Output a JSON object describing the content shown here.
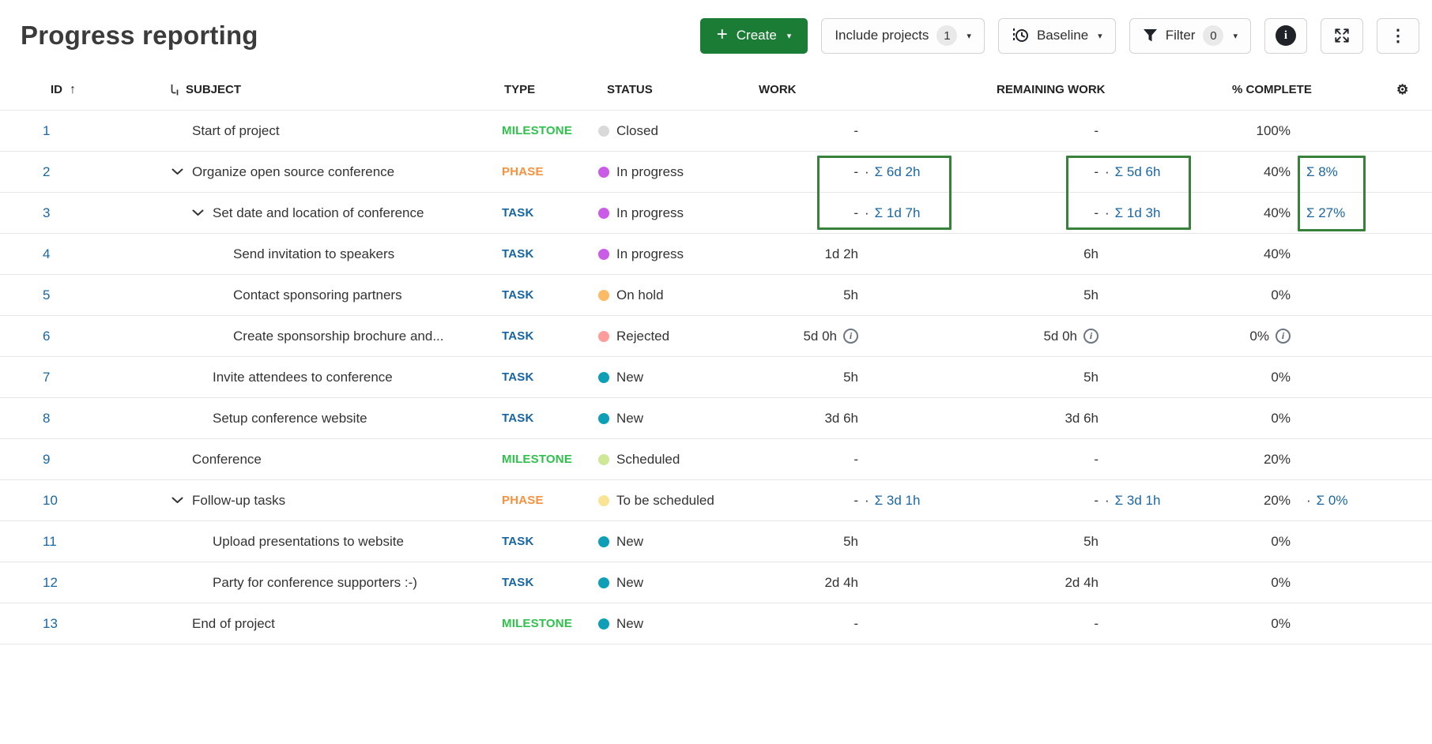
{
  "title": "Progress reporting",
  "toolbar": {
    "create": "Create",
    "include_projects": "Include projects",
    "include_projects_count": "1",
    "baseline": "Baseline",
    "filter": "Filter",
    "filter_count": "0"
  },
  "columns": {
    "id": "ID",
    "subject": "SUBJECT",
    "type": "TYPE",
    "status": "STATUS",
    "work": "WORK",
    "remaining": "REMAINING WORK",
    "percent": "% COMPLETE"
  },
  "colors": {
    "link": "#1A67A3",
    "create_button": "#1B7C35",
    "highlight_box": "#38813A",
    "type": {
      "MILESTONE": "#2EC24B",
      "PHASE": "#F7913D",
      "TASK": "#1565A3"
    },
    "status": {
      "Closed": "#D9D9D9",
      "In progress": "#CB5CE8",
      "On hold": "#FFBA66",
      "Rejected": "#FF9D9D",
      "New": "#0E9FB8",
      "Scheduled": "#CFE897",
      "To be scheduled": "#F9E493"
    }
  },
  "rows": [
    {
      "id": "1",
      "level": 0,
      "chevron": false,
      "subject": "Start of project",
      "type": "MILESTONE",
      "status": "Closed",
      "work": "-",
      "work_sum": null,
      "rem": "-",
      "rem_sum": null,
      "pct": "100%",
      "pct_sum": null,
      "pct_dot": false,
      "info": false
    },
    {
      "id": "2",
      "level": 0,
      "chevron": true,
      "subject": "Organize open source conference",
      "type": "PHASE",
      "status": "In progress",
      "work": "-",
      "work_sum": "Σ 6d 2h",
      "rem": "-",
      "rem_sum": "Σ 5d 6h",
      "pct": "40%",
      "pct_sum": "Σ 8%",
      "pct_dot": false,
      "info": false
    },
    {
      "id": "3",
      "level": 1,
      "chevron": true,
      "subject": "Set date and location of conference",
      "type": "TASK",
      "status": "In progress",
      "work": "-",
      "work_sum": "Σ 1d 7h",
      "rem": "-",
      "rem_sum": "Σ 1d 3h",
      "pct": "40%",
      "pct_sum": "Σ 27%",
      "pct_dot": false,
      "info": false
    },
    {
      "id": "4",
      "level": 2,
      "chevron": false,
      "subject": "Send invitation to speakers",
      "type": "TASK",
      "status": "In progress",
      "work": "1d 2h",
      "work_sum": null,
      "rem": "6h",
      "rem_sum": null,
      "pct": "40%",
      "pct_sum": null,
      "pct_dot": false,
      "info": false
    },
    {
      "id": "5",
      "level": 2,
      "chevron": false,
      "subject": "Contact sponsoring partners",
      "type": "TASK",
      "status": "On hold",
      "work": "5h",
      "work_sum": null,
      "rem": "5h",
      "rem_sum": null,
      "pct": "0%",
      "pct_sum": null,
      "pct_dot": false,
      "info": false
    },
    {
      "id": "6",
      "level": 2,
      "chevron": false,
      "subject": "Create sponsorship brochure and...",
      "type": "TASK",
      "status": "Rejected",
      "work": "5d 0h",
      "work_sum": null,
      "rem": "5d 0h",
      "rem_sum": null,
      "pct": "0%",
      "pct_sum": null,
      "pct_dot": false,
      "info": true
    },
    {
      "id": "7",
      "level": 1,
      "chevron": false,
      "subject": "Invite attendees to conference",
      "type": "TASK",
      "status": "New",
      "work": "5h",
      "work_sum": null,
      "rem": "5h",
      "rem_sum": null,
      "pct": "0%",
      "pct_sum": null,
      "pct_dot": false,
      "info": false
    },
    {
      "id": "8",
      "level": 1,
      "chevron": false,
      "subject": "Setup conference website",
      "type": "TASK",
      "status": "New",
      "work": "3d 6h",
      "work_sum": null,
      "rem": "3d 6h",
      "rem_sum": null,
      "pct": "0%",
      "pct_sum": null,
      "pct_dot": false,
      "info": false
    },
    {
      "id": "9",
      "level": 0,
      "chevron": false,
      "subject": "Conference",
      "type": "MILESTONE",
      "status": "Scheduled",
      "work": "-",
      "work_sum": null,
      "rem": "-",
      "rem_sum": null,
      "pct": "20%",
      "pct_sum": null,
      "pct_dot": false,
      "info": false
    },
    {
      "id": "10",
      "level": 0,
      "chevron": true,
      "subject": "Follow-up tasks",
      "type": "PHASE",
      "status": "To be scheduled",
      "work": "-",
      "work_sum": "Σ 3d 1h",
      "rem": "-",
      "rem_sum": "Σ 3d 1h",
      "pct": "20%",
      "pct_sum": "Σ 0%",
      "pct_dot": true,
      "info": false
    },
    {
      "id": "11",
      "level": 1,
      "chevron": false,
      "subject": "Upload presentations to website",
      "type": "TASK",
      "status": "New",
      "work": "5h",
      "work_sum": null,
      "rem": "5h",
      "rem_sum": null,
      "pct": "0%",
      "pct_sum": null,
      "pct_dot": false,
      "info": false
    },
    {
      "id": "12",
      "level": 1,
      "chevron": false,
      "subject": "Party for conference supporters :-)",
      "type": "TASK",
      "status": "New",
      "work": "2d 4h",
      "work_sum": null,
      "rem": "2d 4h",
      "rem_sum": null,
      "pct": "0%",
      "pct_sum": null,
      "pct_dot": false,
      "info": false
    },
    {
      "id": "13",
      "level": 0,
      "chevron": false,
      "subject": "End of project",
      "type": "MILESTONE",
      "status": "New",
      "work": "-",
      "work_sum": null,
      "rem": "-",
      "rem_sum": null,
      "pct": "0%",
      "pct_sum": null,
      "pct_dot": false,
      "info": false
    }
  ]
}
